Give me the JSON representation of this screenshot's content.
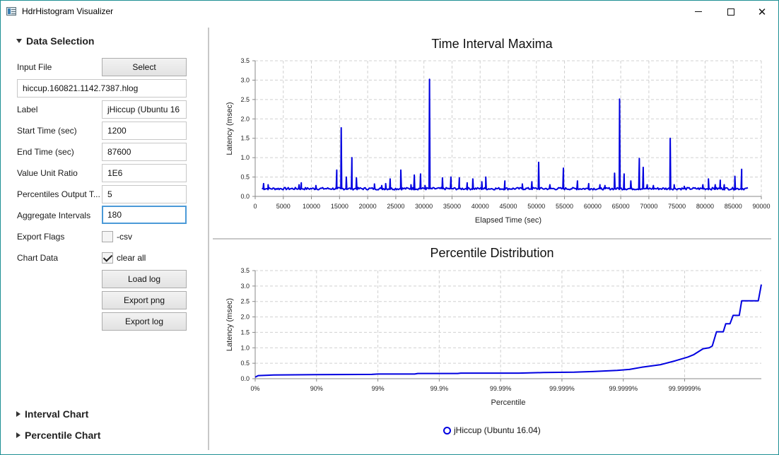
{
  "window": {
    "title": "HdrHistogram Visualizer",
    "minimize_glyph": "",
    "maximize_glyph": "",
    "close_glyph": "✕"
  },
  "sidebar": {
    "data_selection": {
      "header": "Data Selection",
      "input_file_label": "Input File",
      "select_button": "Select",
      "input_file_value": "hiccup.160821.1142.7387.hlog",
      "label_label": "Label",
      "label_value": "jHiccup (Ubuntu 16",
      "start_time_label": "Start Time (sec)",
      "start_time_value": "1200",
      "end_time_label": "End Time (sec)",
      "end_time_value": "87600",
      "value_unit_ratio_label": "Value Unit Ratio",
      "value_unit_ratio_value": "1E6",
      "percentiles_output_label": "Percentiles Output T...",
      "percentiles_output_value": "5",
      "aggregate_intervals_label": "Aggregate Intervals",
      "aggregate_intervals_value": "180",
      "export_flags_label": "Export Flags",
      "csv_checkbox_label": "-csv",
      "csv_checked": false,
      "chart_data_label": "Chart Data",
      "clear_all_label": "clear all",
      "clear_all_checked": true,
      "load_log_button": "Load log",
      "export_png_button": "Export png",
      "export_log_button": "Export log"
    },
    "interval_chart_header": "Interval Chart",
    "percentile_chart_header": "Percentile Chart"
  },
  "colors": {
    "series": "#0000e0",
    "grid": "#d0d0d0",
    "window_border": "#1e8f94",
    "focus": "#4b9ad8"
  },
  "chart_data": [
    {
      "type": "line",
      "title": "Time Interval Maxima",
      "xlabel": "Elapsed Time (sec)",
      "ylabel": "Latency (msec)",
      "xlim": [
        0,
        90000
      ],
      "ylim": [
        0,
        3.5
      ],
      "x_ticks": [
        "0",
        "5000",
        "10000",
        "15000",
        "20000",
        "25000",
        "30000",
        "35000",
        "40000",
        "45000",
        "50000",
        "55000",
        "60000",
        "65000",
        "70000",
        "75000",
        "80000",
        "85000",
        "90000"
      ],
      "y_ticks": [
        "0.0",
        "0.5",
        "1.0",
        "1.5",
        "2.0",
        "2.5",
        "3.0",
        "3.5"
      ],
      "grid": true,
      "series": [
        {
          "name": "jHiccup (Ubuntu 16.04)",
          "baseline": 0.2,
          "x_start": 1200,
          "x_end": 87600,
          "peaks": [
            [
              1500,
              0.33
            ],
            [
              2300,
              0.3
            ],
            [
              7800,
              0.3
            ],
            [
              8200,
              0.35
            ],
            [
              10800,
              0.28
            ],
            [
              14500,
              0.68
            ],
            [
              15300,
              1.77
            ],
            [
              16200,
              0.5
            ],
            [
              17200,
              1.0
            ],
            [
              18000,
              0.48
            ],
            [
              21200,
              0.32
            ],
            [
              22500,
              0.28
            ],
            [
              23200,
              0.33
            ],
            [
              24000,
              0.45
            ],
            [
              25900,
              0.68
            ],
            [
              27700,
              0.3
            ],
            [
              28300,
              0.55
            ],
            [
              29400,
              0.58
            ],
            [
              30200,
              0.28
            ],
            [
              31000,
              3.02
            ],
            [
              33300,
              0.48
            ],
            [
              34800,
              0.5
            ],
            [
              36300,
              0.48
            ],
            [
              37700,
              0.35
            ],
            [
              38700,
              0.45
            ],
            [
              40300,
              0.38
            ],
            [
              41000,
              0.5
            ],
            [
              44400,
              0.4
            ],
            [
              47500,
              0.32
            ],
            [
              49200,
              0.38
            ],
            [
              50400,
              0.88
            ],
            [
              52400,
              0.3
            ],
            [
              54800,
              0.73
            ],
            [
              57300,
              0.4
            ],
            [
              59300,
              0.33
            ],
            [
              61300,
              0.3
            ],
            [
              62200,
              0.28
            ],
            [
              63900,
              0.6
            ],
            [
              64800,
              2.51
            ],
            [
              65600,
              0.58
            ],
            [
              66800,
              0.4
            ],
            [
              68300,
              0.98
            ],
            [
              69000,
              0.75
            ],
            [
              69700,
              0.3
            ],
            [
              70800,
              0.28
            ],
            [
              73800,
              1.5
            ],
            [
              74500,
              0.3
            ],
            [
              76300,
              0.26
            ],
            [
              79600,
              0.3
            ],
            [
              80600,
              0.45
            ],
            [
              81800,
              0.3
            ],
            [
              82700,
              0.42
            ],
            [
              83400,
              0.3
            ],
            [
              85300,
              0.52
            ],
            [
              86500,
              0.7
            ]
          ]
        }
      ]
    },
    {
      "type": "line",
      "title": "Percentile Distribution",
      "xlabel": "Percentile",
      "ylabel": "Latency (msec)",
      "ylim": [
        0,
        3.5
      ],
      "x_ticks": [
        "0%",
        "90%",
        "99%",
        "99.9%",
        "99.99%",
        "99.999%",
        "99.9999%",
        "99.99999%"
      ],
      "y_ticks": [
        "0.0",
        "0.5",
        "1.0",
        "1.5",
        "2.0",
        "2.5",
        "3.0",
        "3.5"
      ],
      "x_range_log10": [
        0,
        8
      ],
      "grid": true,
      "legend": "bottom-center",
      "series": [
        {
          "name": "jHiccup (Ubuntu 16.04)",
          "points_log10": [
            [
              0,
              0.05
            ],
            [
              0.05,
              0.1
            ],
            [
              0.3,
              0.12
            ],
            [
              1,
              0.13
            ],
            [
              1.9,
              0.14
            ],
            [
              2,
              0.15
            ],
            [
              2.6,
              0.15
            ],
            [
              2.65,
              0.17
            ],
            [
              3.3,
              0.17
            ],
            [
              3.35,
              0.18
            ],
            [
              4.3,
              0.18
            ],
            [
              4.7,
              0.2
            ],
            [
              5.2,
              0.21
            ],
            [
              5.5,
              0.23
            ],
            [
              5.9,
              0.27
            ],
            [
              6.1,
              0.3
            ],
            [
              6.3,
              0.37
            ],
            [
              6.6,
              0.45
            ],
            [
              6.85,
              0.58
            ],
            [
              7.05,
              0.7
            ],
            [
              7.15,
              0.78
            ],
            [
              7.3,
              0.97
            ],
            [
              7.4,
              1.0
            ],
            [
              7.45,
              1.06
            ],
            [
              7.52,
              1.52
            ],
            [
              7.63,
              1.52
            ],
            [
              7.67,
              1.78
            ],
            [
              7.74,
              1.78
            ],
            [
              7.79,
              2.05
            ],
            [
              7.89,
              2.05
            ],
            [
              7.93,
              2.52
            ],
            [
              8.2,
              2.52
            ],
            [
              8.25,
              3.05
            ]
          ]
        }
      ]
    }
  ]
}
